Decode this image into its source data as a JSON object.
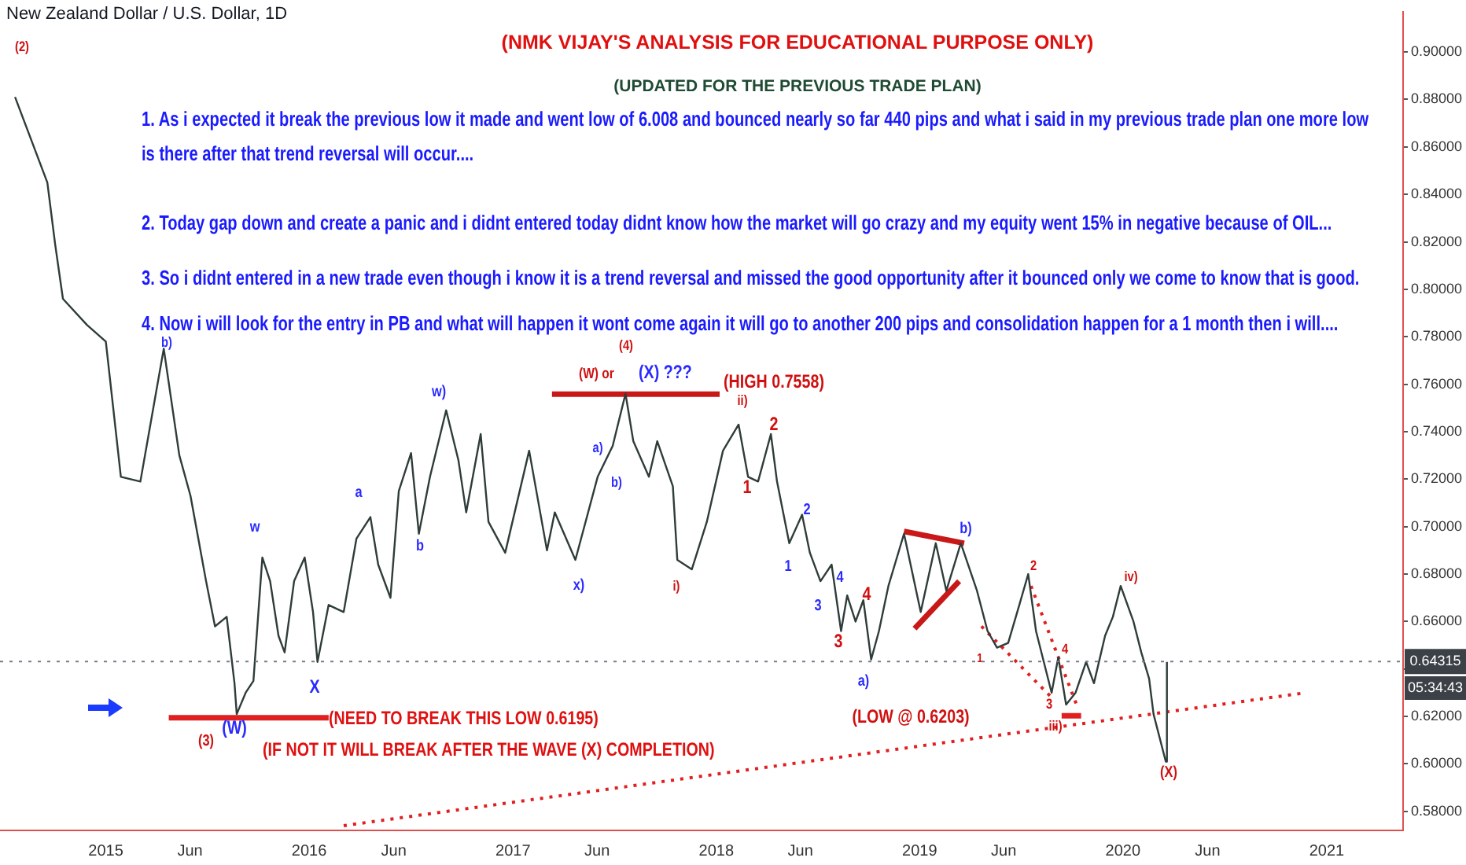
{
  "chart_data": {
    "type": "line",
    "title": "New Zealand Dollar / U.S. Dollar, 1D",
    "subtitle": "(NMK VIJAY'S ANALYSIS FOR EDUCATIONAL PURPOSE ONLY)",
    "series": [
      {
        "color": "#2f3d3a",
        "x": [
          "2014-07-22",
          "2014-09-18",
          "2014-10-02",
          "2014-10-16",
          "2014-11-28",
          "2015-01-01",
          "2015-01-28",
          "2015-03-04",
          "2015-04-15",
          "2015-05-13",
          "2015-06-02",
          "2015-06-16",
          "2015-06-30",
          "2015-07-16",
          "2015-08-06",
          "2015-08-20",
          "2015-08-24",
          "2015-09-09",
          "2015-09-23",
          "2015-10-09",
          "2015-10-23",
          "2015-11-07",
          "2015-11-18",
          "2015-12-05",
          "2015-12-24",
          "2016-01-08",
          "2016-01-16",
          "2016-02-05",
          "2016-03-03",
          "2016-03-26",
          "2016-04-20",
          "2016-05-04",
          "2016-05-26",
          "2016-06-10",
          "2016-07-02",
          "2016-07-16",
          "2016-08-05",
          "2016-09-03",
          "2016-09-25",
          "2016-10-09",
          "2016-11-04",
          "2016-11-18",
          "2016-12-18",
          "2017-01-30",
          "2017-03-03",
          "2017-03-17",
          "2017-04-23",
          "2017-06-02",
          "2017-06-29",
          "2017-07-22",
          "2017-08-05",
          "2017-09-02",
          "2017-09-17",
          "2017-10-15",
          "2017-10-23",
          "2017-11-18",
          "2017-12-15",
          "2018-01-13",
          "2018-02-10",
          "2018-02-27",
          "2018-03-17",
          "2018-04-09",
          "2018-04-20",
          "2018-05-12",
          "2018-06-04",
          "2018-06-18",
          "2018-07-07",
          "2018-07-27",
          "2018-08-13",
          "2018-08-24",
          "2018-09-08",
          "2018-09-22",
          "2018-10-06",
          "2018-10-20",
          "2018-11-06",
          "2018-12-04",
          "2019-01-03",
          "2019-01-30",
          "2019-02-18",
          "2019-03-16",
          "2019-04-14",
          "2019-05-03",
          "2019-05-20",
          "2019-06-09",
          "2019-06-29",
          "2019-07-15",
          "2019-07-29",
          "2019-08-12",
          "2019-08-26",
          "2019-09-07",
          "2019-09-21",
          "2019-10-08",
          "2019-10-27",
          "2019-11-10",
          "2019-11-30",
          "2019-12-14",
          "2019-12-28",
          "2020-01-20",
          "2020-02-03",
          "2020-02-17",
          "2020-02-25",
          "2020-03-18",
          "2020-03-20"
        ],
        "values": [
          0.881,
          0.845,
          0.819,
          0.796,
          0.785,
          0.778,
          0.721,
          0.719,
          0.775,
          0.73,
          0.713,
          0.695,
          0.677,
          0.658,
          0.662,
          0.634,
          0.621,
          0.63,
          0.635,
          0.687,
          0.677,
          0.654,
          0.647,
          0.677,
          0.687,
          0.664,
          0.643,
          0.667,
          0.664,
          0.695,
          0.704,
          0.684,
          0.67,
          0.715,
          0.731,
          0.697,
          0.721,
          0.749,
          0.728,
          0.706,
          0.739,
          0.702,
          0.689,
          0.732,
          0.69,
          0.706,
          0.686,
          0.721,
          0.734,
          0.756,
          0.736,
          0.721,
          0.736,
          0.717,
          0.686,
          0.682,
          0.702,
          0.732,
          0.743,
          0.721,
          0.719,
          0.739,
          0.719,
          0.693,
          0.705,
          0.689,
          0.677,
          0.684,
          0.656,
          0.671,
          0.66,
          0.669,
          0.644,
          0.656,
          0.675,
          0.697,
          0.664,
          0.693,
          0.673,
          0.693,
          0.673,
          0.656,
          0.649,
          0.651,
          0.667,
          0.68,
          0.656,
          0.643,
          0.63,
          0.645,
          0.625,
          0.63,
          0.643,
          0.634,
          0.654,
          0.662,
          0.675,
          0.66,
          0.647,
          0.636,
          0.621,
          0.601,
          0.643
        ]
      },
      {
        "type": "line",
        "color": "#e02020",
        "line_style": "dotted",
        "x": [
          "2016-03-03",
          "2020-11-24"
        ],
        "values": [
          0.574,
          0.63
        ]
      },
      {
        "type": "line",
        "color": "#e02020",
        "line_style": "solid",
        "x": [
          "2015-04-24",
          "2016-02-05"
        ],
        "values": [
          0.6195,
          0.6195
        ]
      },
      {
        "type": "line",
        "color": "#c81818",
        "line_style": "solid",
        "x": [
          "2017-03-12",
          "2018-01-07"
        ],
        "values": [
          0.7558,
          0.7558
        ]
      },
      {
        "type": "line",
        "color": "#c81818",
        "line_style": "solid",
        "x": [
          "2018-12-04",
          "2019-03-22"
        ],
        "values": [
          0.698,
          0.693
        ]
      },
      {
        "type": "line",
        "color": "#c81818",
        "line_style": "solid",
        "x": [
          "2018-12-23",
          "2019-03-13"
        ],
        "values": [
          0.657,
          0.677
        ]
      },
      {
        "type": "line",
        "color": "#e02020",
        "line_style": "solid",
        "x": [
          "2019-09-13",
          "2019-10-18"
        ],
        "values": [
          0.6203,
          0.6203
        ]
      },
      {
        "type": "line",
        "color": "#e02020",
        "line_style": "dotted",
        "x": [
          "2019-04-22",
          "2019-08-26"
        ],
        "values": [
          0.658,
          0.628
        ]
      },
      {
        "type": "line",
        "color": "#e02020",
        "line_style": "dotted",
        "x": [
          "2019-07-20",
          "2019-10-13"
        ],
        "values": [
          0.675,
          0.623
        ]
      }
    ],
    "xlim": [
      "2014-06-25",
      "2021-05-18"
    ],
    "xticks": [
      {
        "value": "2015-01-01",
        "label": "2015"
      },
      {
        "value": "2015-06-01",
        "label": "Jun"
      },
      {
        "value": "2016-01-01",
        "label": "2016"
      },
      {
        "value": "2016-06-01",
        "label": "Jun"
      },
      {
        "value": "2017-01-01",
        "label": "2017"
      },
      {
        "value": "2017-06-01",
        "label": "Jun"
      },
      {
        "value": "2018-01-01",
        "label": "2018"
      },
      {
        "value": "2018-06-01",
        "label": "Jun"
      },
      {
        "value": "2019-01-01",
        "label": "2019"
      },
      {
        "value": "2019-06-01",
        "label": "Jun"
      },
      {
        "value": "2020-01-01",
        "label": "2020"
      },
      {
        "value": "2020-06-01",
        "label": "Jun"
      },
      {
        "value": "2021-01-01",
        "label": "2021"
      }
    ],
    "ylim": [
      0.572,
      0.917
    ],
    "yticks": [
      {
        "value": 0.58,
        "label": "0.58000"
      },
      {
        "value": 0.6,
        "label": "0.60000"
      },
      {
        "value": 0.62,
        "label": "0.62000"
      },
      {
        "value": 0.64,
        "label": null
      },
      {
        "value": 0.66,
        "label": "0.66000"
      },
      {
        "value": 0.68,
        "label": "0.68000"
      },
      {
        "value": 0.7,
        "label": "0.70000"
      },
      {
        "value": 0.72,
        "label": "0.72000"
      },
      {
        "value": 0.74,
        "label": "0.74000"
      },
      {
        "value": 0.76,
        "label": "0.76000"
      },
      {
        "value": 0.78,
        "label": "0.78000"
      },
      {
        "value": 0.8,
        "label": "0.80000"
      },
      {
        "value": 0.82,
        "label": "0.82000"
      },
      {
        "value": 0.84,
        "label": "0.84000"
      },
      {
        "value": 0.86,
        "label": "0.86000"
      },
      {
        "value": 0.88,
        "label": "0.88000"
      },
      {
        "value": 0.9,
        "label": "0.90000"
      }
    ],
    "ref_lines": [
      {
        "axis": "y",
        "value": 0.64315,
        "label": "0.64315",
        "color": "#787b86",
        "line_style": "dotted"
      }
    ],
    "grid": false,
    "legend": false,
    "marker": "none",
    "annotations": [
      "(UPDATED FOR THE PREVIOUS TRADE PLAN)",
      "1. As i expected it break the previous low it made and went low of 6.008 and bounced nearly so far 440 pips and what i said in my previous trade plan one more low is there after that trend reversal will occur....",
      "2. Today gap down and create a panic and i didnt entered today didnt know how the market will go crazy and my equity went 15% in negative because of OIL...",
      "3. So i didnt entered in a new trade even though i know it is a trend reversal and missed the good opportunity after it bounced only we come to know that is good.",
      "4. Now i will look for the entry in PB and what will happen it wont come again it will go to another 200 pips and consolidation happen for a 1 month then i will....",
      "05:34:43",
      "(2)",
      "b)",
      "w",
      "(W)",
      "(3)",
      "X",
      "a",
      "b",
      "w)",
      "(4)",
      "(W) or",
      "(X) ???",
      "(HIGH 0.7558)",
      "a)",
      "b)",
      "x)",
      "i)",
      "ii)",
      "2",
      "1",
      "2",
      "1",
      "4",
      "3",
      "4",
      "3",
      "a)",
      "b)",
      "(LOW @ 0.6203)",
      "(NEED TO BREAK THIS LOW 0.6195)",
      "(IF NOT IT WILL BREAK AFTER THE WAVE (X) COMPLETION)",
      "1",
      "2",
      "4",
      "3",
      "iii)",
      "iv)",
      "(X)"
    ]
  }
}
